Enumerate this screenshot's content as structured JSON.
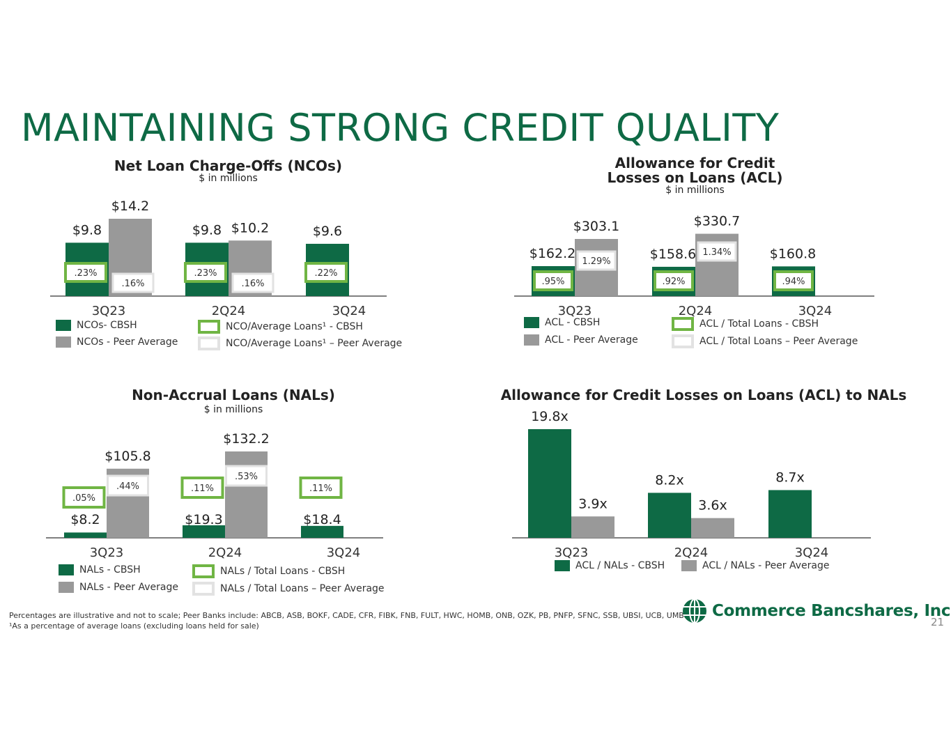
{
  "page": {
    "title": "MAINTAINING STRONG CREDIT QUALITY",
    "footnote_line1": "Percentages are illustrative and not to scale; Peer Banks include: ABCB, ASB, BOKF, CADE, CFR, FIBK, FNB, FULT, HWC, HOMB, ONB, OZK, PB, PNFP, SFNC, SSB, UBSI, UCB, UMBF",
    "footnote_line2": "¹As a percentage of average loans (excluding loans held for sale)",
    "logo_text": "Commerce Bancshares, Inc.",
    "page_number": "21"
  },
  "colors": {
    "cbsh": "#0e6a45",
    "peer": "#999999",
    "cbsh_ratio_border": "#70b544",
    "peer_ratio_border": "#e2e2e2",
    "title": "#0e6a45"
  },
  "chart_data": [
    {
      "id": "nco",
      "type": "bar",
      "title": "Net Loan Charge-Offs (NCOs)",
      "subtitle": "$ in millions",
      "categories": [
        "3Q23",
        "2Q24",
        "3Q24"
      ],
      "series": [
        {
          "name": "NCOs- CBSH",
          "values": [
            9.8,
            9.8,
            9.6
          ],
          "labels": [
            "$9.8",
            "$9.8",
            "$9.6"
          ]
        },
        {
          "name": "NCOs - Peer Average",
          "values": [
            14.2,
            10.2,
            null
          ],
          "labels": [
            "$14.2",
            "$10.2",
            ""
          ]
        }
      ],
      "ratios": [
        {
          "name": "NCO/Average Loans¹ - CBSH",
          "labels": [
            ".23%",
            ".23%",
            ".22%"
          ]
        },
        {
          "name": "NCO/Average Loans¹ – Peer Average",
          "labels": [
            ".16%",
            ".16%",
            ""
          ]
        }
      ],
      "ylim": [
        0,
        15
      ],
      "legend_position": "bottom"
    },
    {
      "id": "acl",
      "type": "bar",
      "title_line1": "Allowance for Credit",
      "title_line2": "Losses on Loans (ACL)",
      "subtitle": "$ in millions",
      "categories": [
        "3Q23",
        "2Q24",
        "3Q24"
      ],
      "series": [
        {
          "name": "ACL - CBSH",
          "values": [
            162.2,
            158.6,
            160.8
          ],
          "labels": [
            "$162.2",
            "$158.6",
            "$160.8"
          ]
        },
        {
          "name": "ACL - Peer Average",
          "values": [
            303.1,
            330.7,
            null
          ],
          "labels": [
            "$303.1",
            "$330.7",
            ""
          ]
        }
      ],
      "ratios": [
        {
          "name": "ACL / Total Loans - CBSH",
          "labels": [
            ".95%",
            ".92%",
            ".94%"
          ]
        },
        {
          "name": "ACL / Total Loans – Peer Average",
          "labels": [
            "1.29%",
            "1.34%",
            ""
          ]
        }
      ],
      "legend_position": "bottom"
    },
    {
      "id": "nal",
      "type": "bar",
      "title": "Non-Accrual Loans (NALs)",
      "subtitle": "$ in millions",
      "categories": [
        "3Q23",
        "2Q24",
        "3Q24"
      ],
      "series": [
        {
          "name": "NALs - CBSH",
          "values": [
            8.2,
            19.3,
            18.4
          ],
          "labels": [
            "$8.2",
            "$19.3",
            "$18.4"
          ]
        },
        {
          "name": "NALs - Peer Average",
          "values": [
            105.8,
            132.2,
            null
          ],
          "labels": [
            "$105.8",
            "$132.2",
            ""
          ]
        }
      ],
      "ratios": [
        {
          "name": "NALs / Total Loans - CBSH",
          "labels": [
            ".05%",
            ".11%",
            ".11%"
          ]
        },
        {
          "name": "NALs / Total Loans – Peer Average",
          "labels": [
            ".44%",
            ".53%",
            ""
          ]
        }
      ],
      "legend_position": "bottom"
    },
    {
      "id": "aclnal",
      "type": "bar",
      "title": "Allowance for Credit Losses on Loans (ACL) to NALs",
      "categories": [
        "3Q23",
        "2Q24",
        "3Q24"
      ],
      "series": [
        {
          "name": "ACL / NALs - CBSH",
          "values": [
            19.8,
            8.2,
            8.7
          ],
          "labels": [
            "19.8x",
            "8.2x",
            "8.7x"
          ]
        },
        {
          "name": "ACL / NALs - Peer Average",
          "values": [
            3.9,
            3.6,
            null
          ],
          "labels": [
            "3.9x",
            "3.6x",
            ""
          ]
        }
      ],
      "ylim": [
        0,
        20
      ],
      "legend_position": "bottom"
    }
  ]
}
